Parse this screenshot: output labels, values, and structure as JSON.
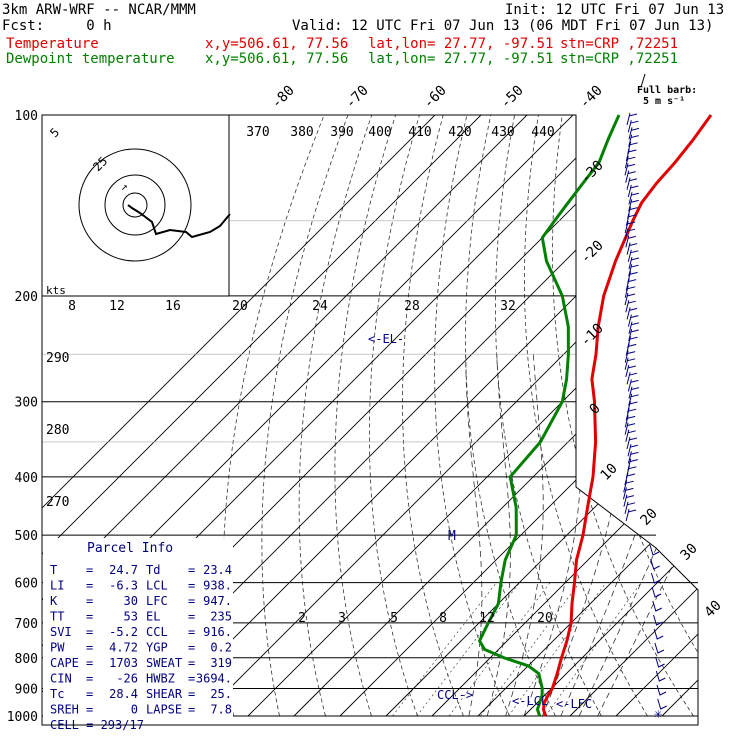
{
  "header": {
    "model": "3km ARW-WRF -- NCAR/MMM",
    "init": "Init: 12 UTC Fri 07 Jun 13",
    "fcst": "Fcst:     0 h",
    "valid": "Valid: 12 UTC Fri 07 Jun 13 (06 MDT Fri 07 Jun 13)",
    "temp_line": {
      "label": "Temperature",
      "xy": "x,y=506.61, 77.56",
      "latlon": "lat,lon= 27.77, -97.51",
      "stn": "stn=CRP ,72251"
    },
    "dew_line": {
      "label": "Dewpoint temperature",
      "xy": "x,y=506.61, 77.56",
      "latlon": "lat,lon= 27.77, -97.51",
      "stn": "stn=CRP ,72251"
    }
  },
  "wind_legend": {
    "line1": "Full barb:",
    "line2": "5 m s⁻¹"
  },
  "colors": {
    "temperature": "#e00000",
    "dewpoint": "#008000",
    "annotation": "#000080",
    "grid": "#000000"
  },
  "chart_data": {
    "type": "line",
    "title": "",
    "y_axis": {
      "label": "",
      "scale": "log-pressure",
      "range_hPa": [
        1000,
        100
      ],
      "ticks": [
        "100",
        "200",
        "300",
        "400",
        "500",
        "600",
        "700",
        "800",
        "900",
        "1000"
      ]
    },
    "isotherm_labels": [
      "-80",
      "-70",
      "-60",
      "-50",
      "-40",
      "-30",
      "-20",
      "-10",
      "0",
      "10",
      "20",
      "30",
      "40"
    ],
    "theta_labels": [
      "370",
      "380",
      "390",
      "400",
      "410",
      "420",
      "430",
      "440"
    ],
    "theta_left_labels": [
      "290",
      "280",
      "270"
    ],
    "mixing_ratio_labels": [
      "2",
      "3",
      "5",
      "8",
      "12",
      "20"
    ],
    "hodo_speed_labels": [
      "8",
      "12",
      "16",
      "20",
      "24",
      "28",
      "32"
    ],
    "hodo_ring_labels": [
      "5",
      "25"
    ],
    "hodo_units": "kts",
    "series": [
      {
        "name": "Temperature",
        "color": "#e00000",
        "points": [
          {
            "p": 1000,
            "t": 24.7
          },
          {
            "p": 975,
            "t": 22.8
          },
          {
            "p": 950,
            "t": 21.5
          },
          {
            "p": 925,
            "t": 20.8
          },
          {
            "p": 900,
            "t": 20.2
          },
          {
            "p": 850,
            "t": 18.0
          },
          {
            "p": 800,
            "t": 15.5
          },
          {
            "p": 750,
            "t": 13.0
          },
          {
            "p": 700,
            "t": 10.0
          },
          {
            "p": 650,
            "t": 6.0
          },
          {
            "p": 600,
            "t": 2.0
          },
          {
            "p": 550,
            "t": -2.5
          },
          {
            "p": 500,
            "t": -6.5
          },
          {
            "p": 450,
            "t": -11.5
          },
          {
            "p": 400,
            "t": -17.0
          },
          {
            "p": 350,
            "t": -24.0
          },
          {
            "p": 300,
            "t": -33.0
          },
          {
            "p": 275,
            "t": -38.5
          },
          {
            "p": 250,
            "t": -43.0
          },
          {
            "p": 225,
            "t": -48.5
          },
          {
            "p": 200,
            "t": -54.0
          },
          {
            "p": 175,
            "t": -59.0
          },
          {
            "p": 150,
            "t": -64.0
          },
          {
            "p": 140,
            "t": -66.0
          },
          {
            "p": 130,
            "t": -67.0
          },
          {
            "p": 120,
            "t": -67.5
          },
          {
            "p": 110,
            "t": -68.5
          },
          {
            "p": 100,
            "t": -70.0
          }
        ]
      },
      {
        "name": "Dewpoint temperature",
        "color": "#008000",
        "points": [
          {
            "p": 1000,
            "t": 23.4
          },
          {
            "p": 975,
            "t": 21.5
          },
          {
            "p": 950,
            "t": 20.5
          },
          {
            "p": 925,
            "t": 19.5
          },
          {
            "p": 900,
            "t": 18.0
          },
          {
            "p": 875,
            "t": 16.0
          },
          {
            "p": 850,
            "t": 14.0
          },
          {
            "p": 825,
            "t": 10.0
          },
          {
            "p": 800,
            "t": 3.0
          },
          {
            "p": 775,
            "t": -3.0
          },
          {
            "p": 750,
            "t": -6.0
          },
          {
            "p": 700,
            "t": -8.0
          },
          {
            "p": 650,
            "t": -10.0
          },
          {
            "p": 600,
            "t": -14.0
          },
          {
            "p": 550,
            "t": -18.0
          },
          {
            "p": 500,
            "t": -21.0
          },
          {
            "p": 450,
            "t": -27.0
          },
          {
            "p": 400,
            "t": -35.0
          },
          {
            "p": 350,
            "t": -36.0
          },
          {
            "p": 300,
            "t": -40.0
          },
          {
            "p": 275,
            "t": -44.0
          },
          {
            "p": 250,
            "t": -49.0
          },
          {
            "p": 225,
            "t": -55.0
          },
          {
            "p": 200,
            "t": -63.0
          },
          {
            "p": 175,
            "t": -74.0
          },
          {
            "p": 160,
            "t": -80.0
          },
          {
            "p": 150,
            "t": -81.0
          },
          {
            "p": 140,
            "t": -82.0
          },
          {
            "p": 130,
            "t": -83.0
          },
          {
            "p": 120,
            "t": -84.0
          },
          {
            "p": 110,
            "t": -87.0
          },
          {
            "p": 100,
            "t": -90.0
          }
        ]
      }
    ],
    "levels_marked": {
      "EL": "<-EL-",
      "M": "M",
      "CCL": "CCL->",
      "LCL": "<-LCL",
      "LFC": "<-LFC"
    }
  },
  "parcel_info": {
    "title": "Parcel Info",
    "rows": [
      {
        "l1": "T",
        "v1": "24.7",
        "l2": "Td",
        "v2": "23.4"
      },
      {
        "l1": "LI",
        "v1": "-6.3",
        "l2": "LCL",
        "v2": "938."
      },
      {
        "l1": "K",
        "v1": "30",
        "l2": "LFC",
        "v2": "947."
      },
      {
        "l1": "TT",
        "v1": "53",
        "l2": "EL",
        "v2": "235"
      },
      {
        "l1": "SVI",
        "v1": "-5.2",
        "l2": "CCL",
        "v2": "916."
      },
      {
        "l1": "PW",
        "v1": "4.72",
        "l2": "YGP",
        "v2": "0.2"
      },
      {
        "l1": "CAPE",
        "v1": "1703",
        "l2": "SWEAT",
        "v2": "319"
      },
      {
        "l1": "CIN",
        "v1": "-26",
        "l2": "HWBZ",
        "v2": "3694."
      },
      {
        "l1": "Tc",
        "v1": "28.4",
        "l2": "SHEAR",
        "v2": "25."
      },
      {
        "l1": "SREH",
        "v1": "0",
        "l2": "LAPSE",
        "v2": "7.8"
      }
    ],
    "cell": "CELL = 293/17"
  }
}
